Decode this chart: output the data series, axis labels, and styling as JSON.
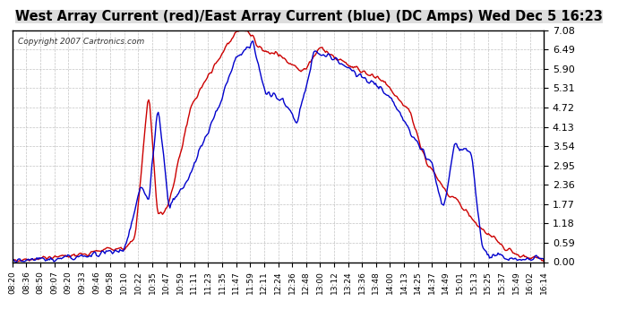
{
  "title": "West Array Current (red)/East Array Current (blue) (DC Amps) Wed Dec 5 16:23",
  "copyright": "Copyright 2007 Cartronics.com",
  "y_ticks": [
    0.0,
    0.59,
    1.18,
    1.77,
    2.36,
    2.95,
    3.54,
    4.13,
    4.72,
    5.31,
    5.9,
    6.49,
    7.08
  ],
  "ylim": [
    0.0,
    7.08
  ],
  "x_labels": [
    "08:20",
    "08:36",
    "08:50",
    "09:07",
    "09:20",
    "09:33",
    "09:46",
    "09:58",
    "10:10",
    "10:22",
    "10:35",
    "10:47",
    "10:59",
    "11:11",
    "11:23",
    "11:35",
    "11:47",
    "11:59",
    "12:11",
    "12:24",
    "12:36",
    "12:48",
    "13:00",
    "13:12",
    "13:24",
    "13:36",
    "13:48",
    "14:00",
    "14:13",
    "14:25",
    "14:37",
    "14:49",
    "15:01",
    "15:13",
    "15:25",
    "15:37",
    "15:49",
    "16:02",
    "16:14"
  ],
  "bg_color": "#ffffff",
  "plot_bg_color": "#ffffff",
  "grid_color": "#aaaaaa",
  "red_color": "#cc0000",
  "blue_color": "#0000cc",
  "title_bg": "#dddddd"
}
